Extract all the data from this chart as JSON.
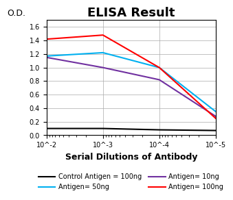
{
  "title": "ELISA Result",
  "ylabel": "O.D.",
  "xlabel": "Serial Dilutions of Antibody",
  "x_values": [
    0.01,
    0.001,
    0.0001,
    1e-05
  ],
  "control_antigen": {
    "label": "Control Antigen = 100ng",
    "color": "#000000",
    "y": [
      0.1,
      0.1,
      0.08,
      0.07
    ]
  },
  "antigen_10ng": {
    "label": "Antigen= 10ng",
    "color": "#7030a0",
    "y": [
      1.15,
      1.0,
      0.82,
      0.28
    ]
  },
  "antigen_50ng": {
    "label": "Antigen= 50ng",
    "color": "#00b0f0",
    "y": [
      1.17,
      1.22,
      1.0,
      0.35
    ]
  },
  "antigen_100ng": {
    "label": "Antigen= 100ng",
    "color": "#ff0000",
    "y": [
      1.42,
      1.48,
      1.0,
      0.25
    ]
  },
  "ylim": [
    0,
    1.7
  ],
  "yticks": [
    0,
    0.2,
    0.4,
    0.6,
    0.8,
    1.0,
    1.2,
    1.4,
    1.6
  ],
  "bg_color": "#ffffff",
  "title_fontsize": 13,
  "label_fontsize": 9,
  "legend_fontsize": 7
}
